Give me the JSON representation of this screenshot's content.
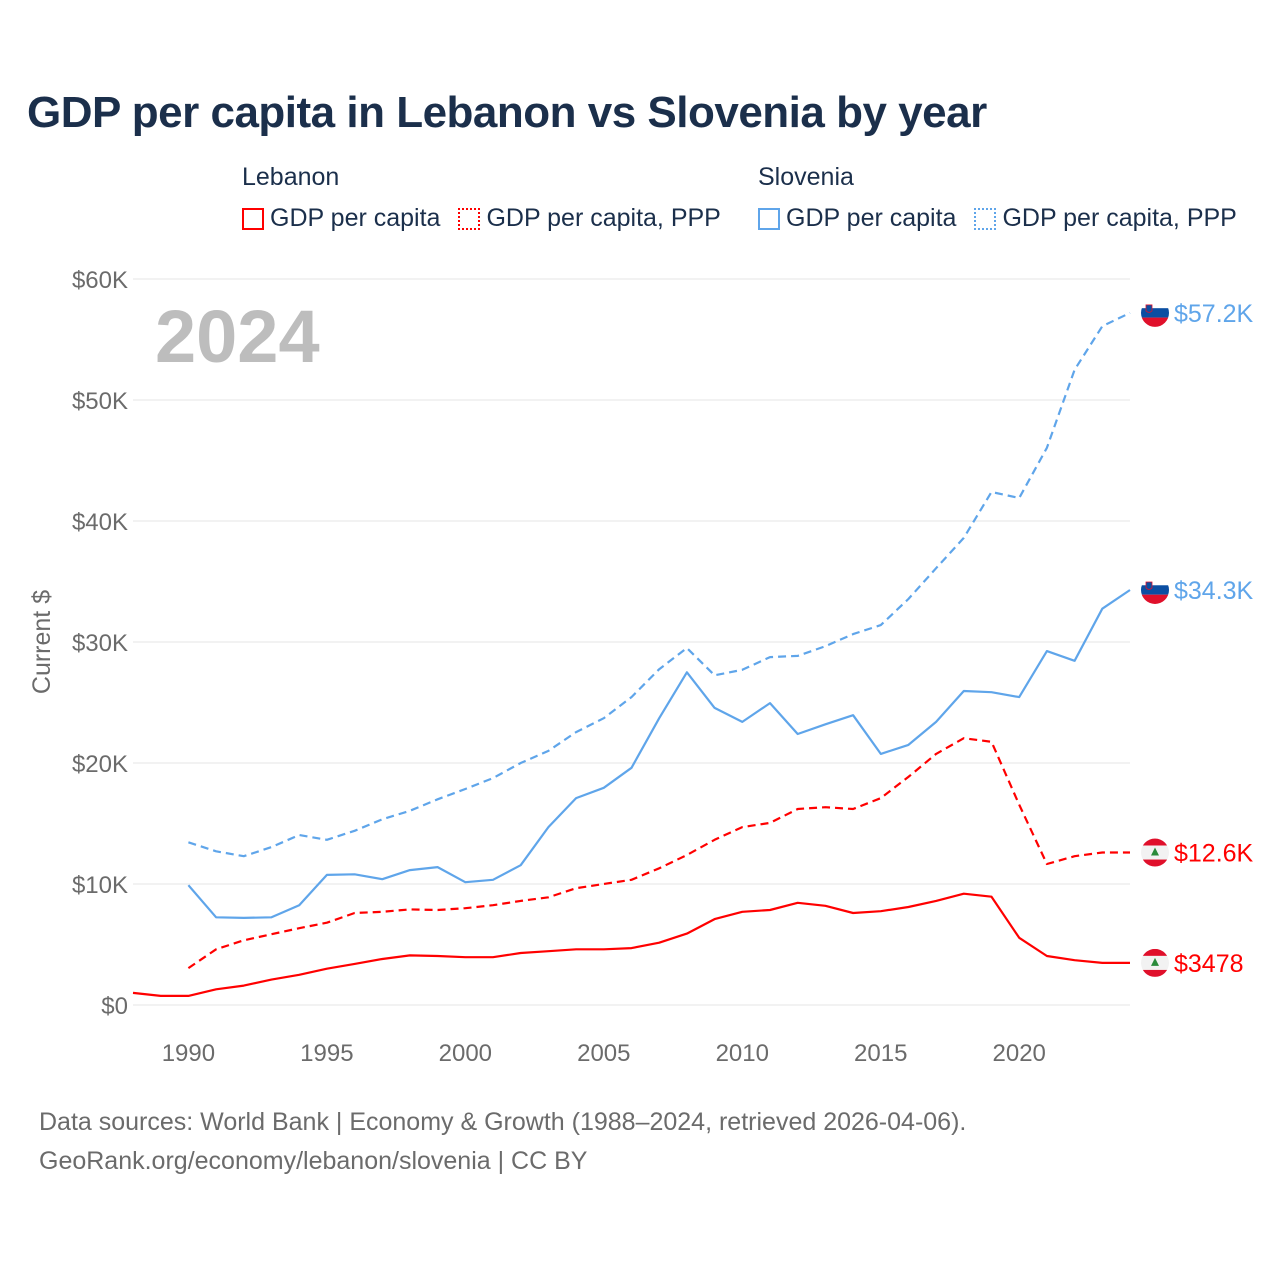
{
  "title": "GDP per capita in Lebanon vs Slovenia by year",
  "legend": {
    "groups": [
      {
        "country": "Lebanon",
        "items": [
          {
            "label": "GDP per capita",
            "style": "solid"
          },
          {
            "label": "GDP per capita, PPP",
            "style": "dotted"
          }
        ],
        "color": "#ff0000"
      },
      {
        "country": "Slovenia",
        "items": [
          {
            "label": "GDP per capita",
            "style": "solid"
          },
          {
            "label": "GDP per capita, PPP",
            "style": "dotted"
          }
        ],
        "color": "#5fa5ea"
      }
    ]
  },
  "year_overlay": "2024",
  "footer": {
    "line1": "Data sources: World Bank | Economy & Growth (1988–2024, retrieved 2026-04-06).",
    "line2": "GeoRank.org/economy/lebanon/slovenia | CC BY"
  },
  "chart_data": {
    "type": "line",
    "title": "GDP per capita in Lebanon vs Slovenia by year",
    "xlabel": "",
    "ylabel": "Current $",
    "xlim": [
      1988,
      2024
    ],
    "ylim": [
      0,
      60000
    ],
    "grid": true,
    "legend_placement": "top",
    "x_ticks": [
      1990,
      1995,
      2000,
      2005,
      2010,
      2015,
      2020
    ],
    "y_ticks": [
      {
        "value": 0,
        "label": "$0"
      },
      {
        "value": 10000,
        "label": "$10K"
      },
      {
        "value": 20000,
        "label": "$20K"
      },
      {
        "value": 30000,
        "label": "$30K"
      },
      {
        "value": 40000,
        "label": "$40K"
      },
      {
        "value": 50000,
        "label": "$50K"
      },
      {
        "value": 60000,
        "label": "$60K"
      }
    ],
    "series": [
      {
        "name": "Lebanon GDP per capita",
        "country": "Lebanon",
        "color": "#ff0000",
        "dashed": false,
        "end_label": "$3478",
        "flag": "lebanon",
        "x": [
          1988,
          1989,
          1990,
          1991,
          1992,
          1993,
          1994,
          1995,
          1996,
          1997,
          1998,
          1999,
          2000,
          2001,
          2002,
          2003,
          2004,
          2005,
          2006,
          2007,
          2008,
          2009,
          2010,
          2011,
          2012,
          2013,
          2014,
          2015,
          2016,
          2017,
          2018,
          2019,
          2020,
          2021,
          2022,
          2023,
          2024
        ],
        "values": [
          1000,
          750,
          750,
          1300,
          1600,
          2100,
          2500,
          3000,
          3400,
          3800,
          4100,
          4050,
          3950,
          3950,
          4300,
          4450,
          4600,
          4600,
          4700,
          5150,
          5900,
          7100,
          7700,
          7850,
          8450,
          8200,
          7600,
          7750,
          8100,
          8600,
          9200,
          8950,
          5550,
          4050,
          3700,
          3478,
          3478
        ]
      },
      {
        "name": "Lebanon GDP per capita, PPP",
        "country": "Lebanon",
        "color": "#ff0000",
        "dashed": true,
        "end_label": "$12.6K",
        "flag": "lebanon",
        "x": [
          1990,
          1991,
          1992,
          1993,
          1994,
          1995,
          1996,
          1997,
          1998,
          1999,
          2000,
          2001,
          2002,
          2003,
          2004,
          2005,
          2006,
          2007,
          2008,
          2009,
          2010,
          2011,
          2012,
          2013,
          2014,
          2015,
          2016,
          2017,
          2018,
          2019,
          2020,
          2021,
          2022,
          2023,
          2024
        ],
        "values": [
          3050,
          4600,
          5350,
          5850,
          6350,
          6800,
          7600,
          7700,
          7900,
          7850,
          8000,
          8250,
          8600,
          8900,
          9650,
          10000,
          10350,
          11300,
          12400,
          13650,
          14700,
          15050,
          16200,
          16350,
          16200,
          17100,
          18850,
          20750,
          22050,
          21750,
          16550,
          11650,
          12300,
          12600,
          12600
        ]
      },
      {
        "name": "Slovenia GDP per capita",
        "country": "Slovenia",
        "color": "#5fa5ea",
        "dashed": false,
        "end_label": "$34.3K",
        "flag": "slovenia",
        "x": [
          1990,
          1991,
          1992,
          1993,
          1994,
          1995,
          1996,
          1997,
          1998,
          1999,
          2000,
          2001,
          2002,
          2003,
          2004,
          2005,
          2006,
          2007,
          2008,
          2009,
          2010,
          2011,
          2012,
          2013,
          2014,
          2015,
          2016,
          2017,
          2018,
          2019,
          2020,
          2021,
          2022,
          2023,
          2024
        ],
        "values": [
          9900,
          7250,
          7200,
          7250,
          8250,
          10750,
          10800,
          10400,
          11150,
          11400,
          10150,
          10350,
          11550,
          14700,
          17100,
          17950,
          19600,
          23700,
          27500,
          24550,
          23400,
          24950,
          22400,
          23200,
          23950,
          20750,
          21500,
          23400,
          25950,
          25850,
          25450,
          29250,
          28450,
          32750,
          34300
        ]
      },
      {
        "name": "Slovenia GDP per capita, PPP",
        "country": "Slovenia",
        "color": "#5fa5ea",
        "dashed": true,
        "end_label": "$57.2K",
        "flag": "slovenia",
        "x": [
          1990,
          1991,
          1992,
          1993,
          1994,
          1995,
          1996,
          1997,
          1998,
          1999,
          2000,
          2001,
          2002,
          2003,
          2004,
          2005,
          2006,
          2007,
          2008,
          2009,
          2010,
          2011,
          2012,
          2013,
          2014,
          2015,
          2016,
          2017,
          2018,
          2019,
          2020,
          2021,
          2022,
          2023,
          2024
        ],
        "values": [
          13450,
          12700,
          12300,
          13050,
          14050,
          13650,
          14400,
          15350,
          16050,
          17000,
          17850,
          18750,
          20000,
          21000,
          22550,
          23700,
          25450,
          27750,
          29500,
          27250,
          27700,
          28750,
          28850,
          29650,
          30650,
          31400,
          33550,
          36100,
          38600,
          42400,
          41900,
          46050,
          52500,
          56100,
          57200
        ]
      }
    ]
  }
}
